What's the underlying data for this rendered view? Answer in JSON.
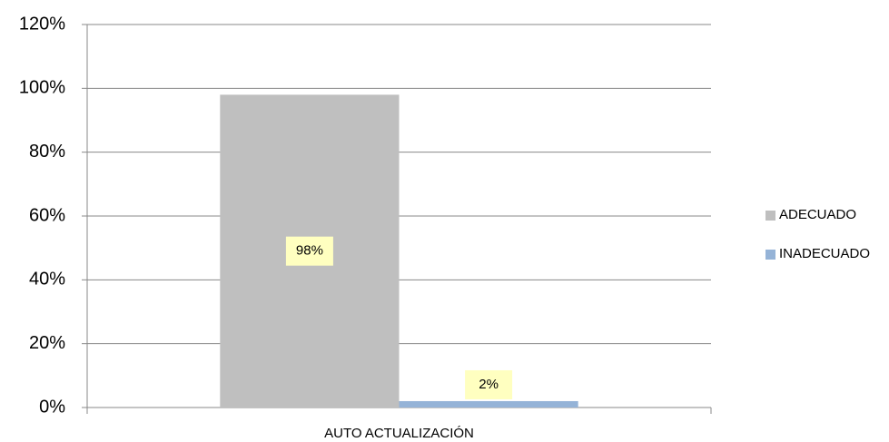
{
  "chart_data": {
    "type": "bar",
    "categories": [
      "AUTO ACTUALIZACIÓN"
    ],
    "series": [
      {
        "name": "ADECUADO",
        "color": "#bfbfbf",
        "values": [
          98
        ],
        "value_labels": [
          "98%"
        ]
      },
      {
        "name": "INADECUADO",
        "color": "#95b3d7",
        "values": [
          2
        ],
        "value_labels": [
          "2%"
        ]
      }
    ],
    "ylim": [
      0,
      120
    ],
    "yticks": [
      {
        "value": 0,
        "label": "0%"
      },
      {
        "value": 20,
        "label": "20%"
      },
      {
        "value": 40,
        "label": "40%"
      },
      {
        "value": 60,
        "label": "60%"
      },
      {
        "value": 80,
        "label": "80%"
      },
      {
        "value": 100,
        "label": "100%"
      },
      {
        "value": 120,
        "label": "120%"
      }
    ],
    "grid": true,
    "legend": "right",
    "label_box_color": "#ffffc0"
  }
}
